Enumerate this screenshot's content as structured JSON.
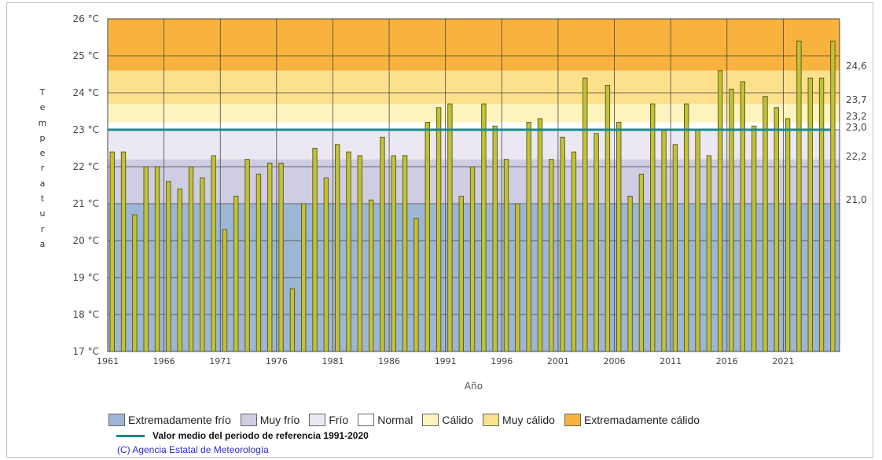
{
  "chart_data": {
    "type": "bar",
    "xlabel": "Año",
    "ylabel": "Temperatura",
    "ylim": [
      17,
      26
    ],
    "y_ticks": [
      "17 °C",
      "18 °C",
      "19 °C",
      "20 °C",
      "21 °C",
      "22 °C",
      "23 °C",
      "24 °C",
      "25 °C",
      "26 °C"
    ],
    "x_ticks": [
      "1961",
      "1966",
      "1971",
      "1976",
      "1981",
      "1986",
      "1991",
      "1996",
      "2001",
      "2006",
      "2011",
      "2016",
      "2021"
    ],
    "x": [
      1961,
      1962,
      1963,
      1964,
      1965,
      1966,
      1967,
      1968,
      1969,
      1970,
      1971,
      1972,
      1973,
      1974,
      1975,
      1976,
      1977,
      1978,
      1979,
      1980,
      1981,
      1982,
      1983,
      1984,
      1985,
      1986,
      1987,
      1988,
      1989,
      1990,
      1991,
      1992,
      1993,
      1994,
      1995,
      1996,
      1997,
      1998,
      1999,
      2000,
      2001,
      2002,
      2003,
      2004,
      2005,
      2006,
      2007,
      2008,
      2009,
      2010,
      2011,
      2012,
      2013,
      2014,
      2015,
      2016,
      2017,
      2018,
      2019,
      2020,
      2021,
      2022,
      2023,
      2024,
      2025
    ],
    "values": [
      22.4,
      22.4,
      20.7,
      22.0,
      22.0,
      21.6,
      21.4,
      22.0,
      21.7,
      22.3,
      20.3,
      21.2,
      22.2,
      21.8,
      22.1,
      22.1,
      18.7,
      21.0,
      22.5,
      21.7,
      22.6,
      22.4,
      22.3,
      21.1,
      22.8,
      22.3,
      22.3,
      20.6,
      23.2,
      23.6,
      23.7,
      21.2,
      22.0,
      23.7,
      23.1,
      22.2,
      21.0,
      23.2,
      23.3,
      22.2,
      22.8,
      22.4,
      24.4,
      22.9,
      24.2,
      23.2,
      21.2,
      21.8,
      23.7,
      23.0,
      22.6,
      23.7,
      23.0,
      22.3,
      24.6,
      24.1,
      24.3,
      23.1,
      23.9,
      23.6,
      23.3,
      25.4,
      24.4,
      24.4,
      25.4
    ],
    "reference_mean": 23.0,
    "bands": [
      {
        "name": "Extremadamente frío",
        "from": 17.0,
        "to": 21.0,
        "color": "#9db6d6"
      },
      {
        "name": "Muy frío",
        "from": 21.0,
        "to": 22.2,
        "color": "#cfcde3"
      },
      {
        "name": "Frío",
        "from": 22.2,
        "to": 23.0,
        "color": "#ebe8f3"
      },
      {
        "name": "Normal",
        "from": 23.0,
        "to": 23.2,
        "color": "#ffffff"
      },
      {
        "name": "Cálido",
        "from": 23.2,
        "to": 23.7,
        "color": "#fff3bd"
      },
      {
        "name": "Muy cálido",
        "from": 23.7,
        "to": 24.6,
        "color": "#fde08c"
      },
      {
        "name": "Extremadamente cálido",
        "from": 24.6,
        "to": 26.0,
        "color": "#f8b33e"
      }
    ],
    "right_axis_labels": [
      "24,6",
      "23,7",
      "23,2",
      "23,0",
      "22,2",
      "21,0"
    ],
    "bar_color": "#c2c236",
    "reference_line_color": "#1b8a8c",
    "grid": true
  },
  "legend": {
    "items": [
      {
        "label": "Extremadamente frío",
        "color": "#9db6d6"
      },
      {
        "label": "Muy frío",
        "color": "#cfcde3"
      },
      {
        "label": "Frío",
        "color": "#ebe8f3"
      },
      {
        "label": "Normal",
        "color": "#ffffff"
      },
      {
        "label": "Cálido",
        "color": "#fff3bd"
      },
      {
        "label": "Muy cálido",
        "color": "#fde08c"
      },
      {
        "label": "Extremadamente cálido",
        "color": "#f8b33e"
      }
    ],
    "reference_line_label": "Valor medio del periodo de referencia 1991-2020"
  },
  "credit": "(C) Agencia Estatal de Meteorología"
}
